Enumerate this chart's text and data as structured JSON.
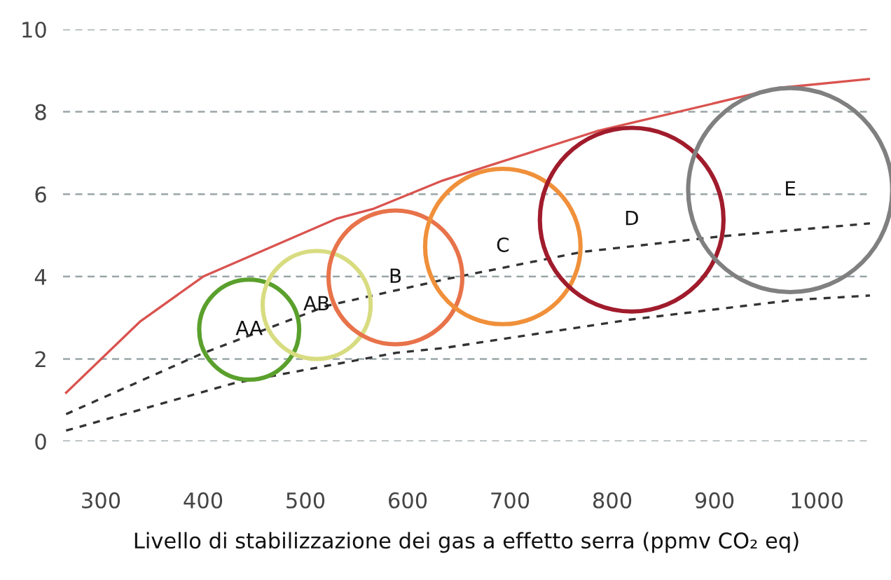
{
  "chart_data": {
    "type": "bubble",
    "xlabel": "Livello di stabilizzazione dei gas a effetto serra (ppmv CO₂ eq)",
    "xlim": [
      263,
      1052
    ],
    "ylim": [
      0,
      10
    ],
    "xticks": [
      300,
      400,
      500,
      600,
      700,
      800,
      900,
      1000
    ],
    "yticks": [
      0,
      2,
      4,
      6,
      8,
      10
    ],
    "grid": "y",
    "legend": false,
    "series": [
      {
        "type": "line",
        "color": "#d9534f",
        "line_style": "solid",
        "x": [
          266,
          338,
          400,
          530,
          567,
          634,
          785,
          963,
          1052
        ],
        "values": [
          1.18,
          2.9,
          4.0,
          5.4,
          5.65,
          6.33,
          7.53,
          8.58,
          8.8
        ]
      },
      {
        "type": "line",
        "color": "#333333",
        "line_style": "dashed",
        "x": [
          266,
          397,
          521,
          640,
          771,
          908,
          1052
        ],
        "values": [
          0.66,
          2.11,
          3.29,
          3.95,
          4.6,
          4.98,
          5.29
        ]
      },
      {
        "type": "line",
        "color": "#333333",
        "line_style": "dashed",
        "x": [
          266,
          430,
          589,
          634,
          816,
          977,
          1052
        ],
        "values": [
          0.26,
          1.41,
          2.15,
          2.26,
          2.95,
          3.43,
          3.54
        ]
      },
      {
        "x": [
          445,
          511,
          588,
          693,
          819,
          974
        ],
        "values": [
          2.71,
          3.31,
          3.98,
          4.73,
          5.38,
          6.1
        ],
        "sizes": [
          0.24,
          0.28,
          0.43,
          0.58,
          0.81,
          1.0
        ],
        "colors": [
          "#5aa02c",
          "#d8dc80",
          "#e8734a",
          "#f0903a",
          "#a01c2c",
          "#808080"
        ]
      }
    ],
    "annotations": [
      {
        "text": "AA",
        "x": 445,
        "y": 2.71
      },
      {
        "text": "AB",
        "x": 511,
        "y": 3.31
      },
      {
        "text": "B",
        "x": 588,
        "y": 3.98
      },
      {
        "text": "C",
        "x": 693,
        "y": 4.73
      },
      {
        "text": "D",
        "x": 819,
        "y": 5.38
      },
      {
        "text": "E",
        "x": 974,
        "y": 6.1
      }
    ]
  }
}
